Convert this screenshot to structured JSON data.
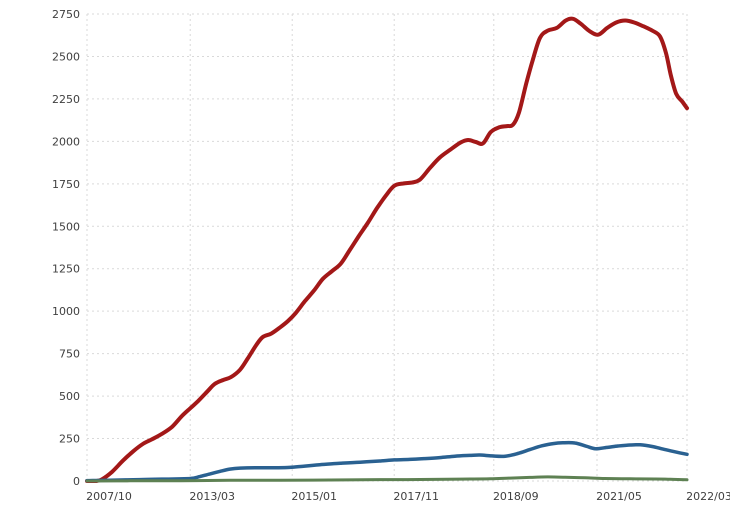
{
  "chart_data": {
    "type": "line",
    "title": "",
    "xlabel": "",
    "ylabel": "",
    "grid": "dotted",
    "legend": "none",
    "colors": {
      "background": "#ffffff",
      "grid": "#d9d9d9",
      "tick_text": "#404040",
      "series_red": "#a31818",
      "series_blue": "#2a6191",
      "series_green": "#5e8153"
    },
    "y_axis": {
      "min": 0,
      "max": 2750,
      "tick_step": 250,
      "ticks": [
        0,
        250,
        500,
        750,
        1000,
        1250,
        1500,
        1750,
        2000,
        2250,
        2500,
        2750
      ]
    },
    "x_axis": {
      "labels": [
        "2007/10",
        "2013/03",
        "2015/01",
        "2017/11",
        "2018/09",
        "2021/05",
        "2022/03"
      ],
      "label_positions_pct": [
        0,
        17.2,
        34.2,
        51.2,
        67.8,
        85,
        100
      ]
    },
    "series": [
      {
        "name": "dark-red",
        "color_key": "series_red",
        "stroke_width": 4,
        "points": [
          [
            0,
            0
          ],
          [
            1.5,
            0
          ],
          [
            2.5,
            10
          ],
          [
            4.2,
            55
          ],
          [
            6,
            120
          ],
          [
            7.7,
            175
          ],
          [
            9.3,
            218
          ],
          [
            10.8,
            245
          ],
          [
            12.5,
            278
          ],
          [
            14.2,
            320
          ],
          [
            15.8,
            382
          ],
          [
            17.2,
            428
          ],
          [
            18.5,
            470
          ],
          [
            20,
            525
          ],
          [
            21.3,
            572
          ],
          [
            22.7,
            595
          ],
          [
            24,
            612
          ],
          [
            25.5,
            655
          ],
          [
            26.8,
            722
          ],
          [
            28.2,
            800
          ],
          [
            29.3,
            848
          ],
          [
            30.7,
            868
          ],
          [
            32.2,
            905
          ],
          [
            33.5,
            942
          ],
          [
            34.8,
            990
          ],
          [
            36.3,
            1058
          ],
          [
            37.8,
            1120
          ],
          [
            39.3,
            1190
          ],
          [
            40.8,
            1235
          ],
          [
            42.3,
            1280
          ],
          [
            43.8,
            1360
          ],
          [
            45.3,
            1442
          ],
          [
            46.8,
            1520
          ],
          [
            48.3,
            1605
          ],
          [
            49.8,
            1680
          ],
          [
            51.2,
            1738
          ],
          [
            52.7,
            1752
          ],
          [
            54.2,
            1758
          ],
          [
            55.5,
            1775
          ],
          [
            57.2,
            1845
          ],
          [
            58.8,
            1905
          ],
          [
            60.5,
            1950
          ],
          [
            62.2,
            1992
          ],
          [
            63.5,
            2008
          ],
          [
            64.8,
            1996
          ],
          [
            66,
            1988
          ],
          [
            67.3,
            2055
          ],
          [
            68.7,
            2083
          ],
          [
            70,
            2090
          ],
          [
            71,
            2098
          ],
          [
            72,
            2170
          ],
          [
            73.2,
            2340
          ],
          [
            74.3,
            2480
          ],
          [
            75.5,
            2610
          ],
          [
            76.8,
            2652
          ],
          [
            78.3,
            2668
          ],
          [
            79.8,
            2712
          ],
          [
            81,
            2722
          ],
          [
            82.3,
            2692
          ],
          [
            83.8,
            2648
          ],
          [
            85.2,
            2628
          ],
          [
            86.7,
            2668
          ],
          [
            88.2,
            2700
          ],
          [
            89.7,
            2712
          ],
          [
            91.2,
            2700
          ],
          [
            92.7,
            2678
          ],
          [
            94.2,
            2652
          ],
          [
            95.5,
            2618
          ],
          [
            96.5,
            2520
          ],
          [
            97.3,
            2390
          ],
          [
            98.2,
            2280
          ],
          [
            99.2,
            2235
          ],
          [
            100,
            2195
          ]
        ]
      },
      {
        "name": "blue",
        "color_key": "series_blue",
        "stroke_width": 3.5,
        "points": [
          [
            0,
            2
          ],
          [
            3.8,
            5
          ],
          [
            8.8,
            8
          ],
          [
            13,
            11
          ],
          [
            17.2,
            15
          ],
          [
            18.8,
            26
          ],
          [
            20.5,
            42
          ],
          [
            22.2,
            57
          ],
          [
            23.8,
            70
          ],
          [
            25.5,
            76
          ],
          [
            28,
            78
          ],
          [
            31.3,
            78
          ],
          [
            33.8,
            80
          ],
          [
            36.3,
            88
          ],
          [
            38.8,
            96
          ],
          [
            42.2,
            104
          ],
          [
            45.5,
            111
          ],
          [
            48.8,
            118
          ],
          [
            51.2,
            124
          ],
          [
            53.8,
            127
          ],
          [
            56.3,
            132
          ],
          [
            58.8,
            138
          ],
          [
            61.3,
            146
          ],
          [
            63.8,
            151
          ],
          [
            65.5,
            153
          ],
          [
            67.5,
            148
          ],
          [
            69.7,
            146
          ],
          [
            71.8,
            162
          ],
          [
            73.8,
            185
          ],
          [
            75.8,
            207
          ],
          [
            77.7,
            220
          ],
          [
            79.3,
            225
          ],
          [
            81.3,
            224
          ],
          [
            83.2,
            205
          ],
          [
            84.7,
            190
          ],
          [
            86.3,
            196
          ],
          [
            88.5,
            206
          ],
          [
            90.5,
            212
          ],
          [
            92.2,
            213
          ],
          [
            94.2,
            203
          ],
          [
            96,
            188
          ],
          [
            98,
            172
          ],
          [
            100,
            157
          ]
        ]
      },
      {
        "name": "green",
        "color_key": "series_green",
        "stroke_width": 3,
        "points": [
          [
            0,
            0
          ],
          [
            7.2,
            1
          ],
          [
            15.5,
            2
          ],
          [
            23.8,
            4
          ],
          [
            32.2,
            5
          ],
          [
            40.5,
            6
          ],
          [
            48.8,
            8
          ],
          [
            55.5,
            9
          ],
          [
            62.2,
            11
          ],
          [
            67.2,
            13
          ],
          [
            70.5,
            17
          ],
          [
            73.8,
            21
          ],
          [
            76.8,
            24
          ],
          [
            79.7,
            22
          ],
          [
            83,
            19
          ],
          [
            86.3,
            15
          ],
          [
            90.5,
            13
          ],
          [
            94.7,
            12
          ],
          [
            97.2,
            10
          ],
          [
            100,
            7
          ]
        ]
      }
    ]
  }
}
